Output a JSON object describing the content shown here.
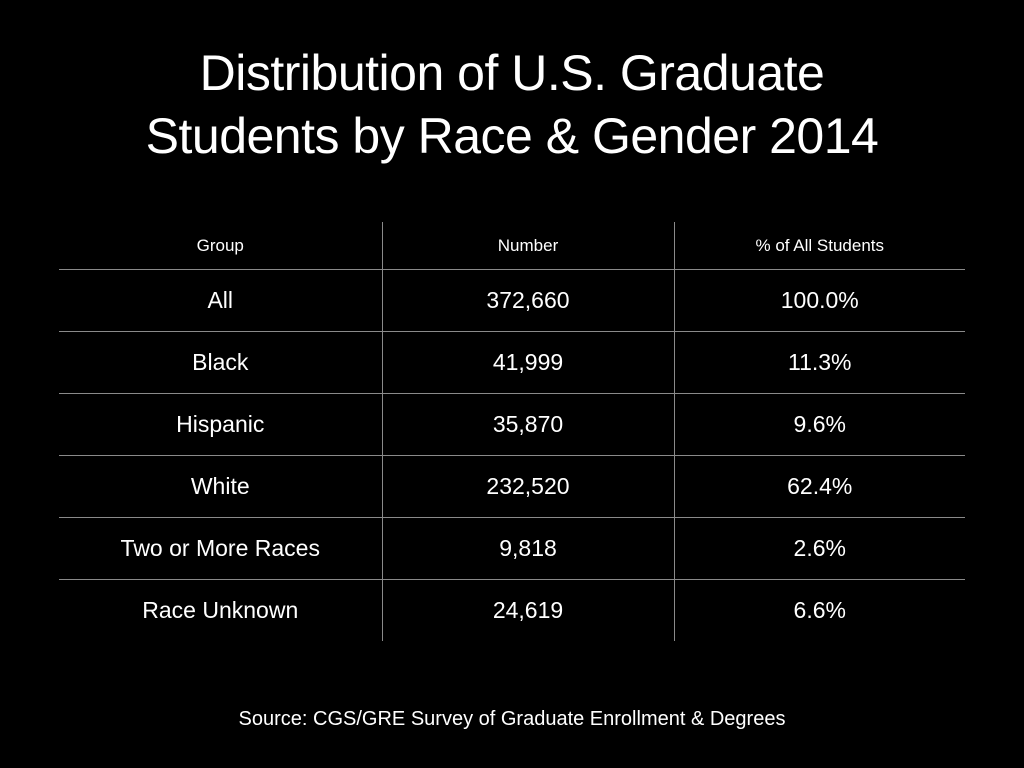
{
  "title": {
    "line1": "Distribution of U.S. Graduate",
    "line2": "Students by Race & Gender 2014"
  },
  "table": {
    "headers": [
      "Group",
      "Number",
      "% of All Students"
    ],
    "rows": [
      [
        "All",
        "372,660",
        "100.0%"
      ],
      [
        "Black",
        "41,999",
        "11.3%"
      ],
      [
        "Hispanic",
        "35,870",
        "9.6%"
      ],
      [
        "White",
        "232,520",
        "62.4%"
      ],
      [
        "Two or More Races",
        "9,818",
        "2.6%"
      ],
      [
        "Race Unknown",
        "24,619",
        "6.6%"
      ]
    ]
  },
  "source": "Source: CGS/GRE Survey of Graduate Enrollment & Degrees",
  "colors": {
    "background": "#000000",
    "text": "#ffffff",
    "rule": "#8a8a8a"
  }
}
